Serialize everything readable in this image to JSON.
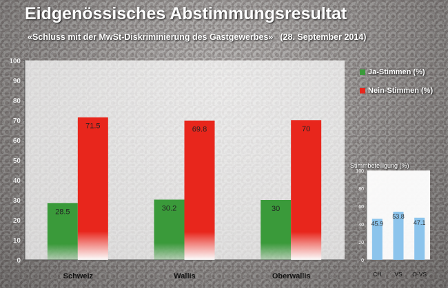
{
  "header": {
    "title": "Eidgenössisches Abstimmungsresultat",
    "subtitle": "«Schluss mit der MwSt-Diskriminierung des Gastgewerbes»",
    "date": "(28. September 2014)"
  },
  "chart_data": [
    {
      "type": "bar",
      "categories": [
        "Schweiz",
        "Wallis",
        "Oberwallis"
      ],
      "series": [
        {
          "name": "Ja-Stimmen (%)",
          "values": [
            28.5,
            30.2,
            30
          ],
          "labels": [
            "28.5",
            "30.2",
            "30"
          ],
          "color": "#3a9a3a"
        },
        {
          "name": "Nein-Stimmen (%)",
          "values": [
            71.5,
            69.8,
            70
          ],
          "labels": [
            "71.5",
            "69.8",
            "70"
          ],
          "color": "#e8261c"
        }
      ],
      "ylim": [
        0,
        100
      ],
      "yticks": [
        0,
        10,
        20,
        30,
        40,
        50,
        60,
        70,
        80,
        90,
        100
      ],
      "grid": false,
      "legend": "right"
    },
    {
      "type": "bar",
      "title": "Stimmbeteiligung (%)",
      "categories": [
        "CH",
        "VS",
        "O-VS"
      ],
      "values": [
        45.9,
        53.8,
        47.1
      ],
      "labels": [
        "45.9",
        "53.8",
        "47.1"
      ],
      "color": "#8cc4ec",
      "ylim": [
        0,
        100
      ],
      "yticks": [
        0,
        20,
        40,
        60,
        80,
        100
      ]
    }
  ]
}
